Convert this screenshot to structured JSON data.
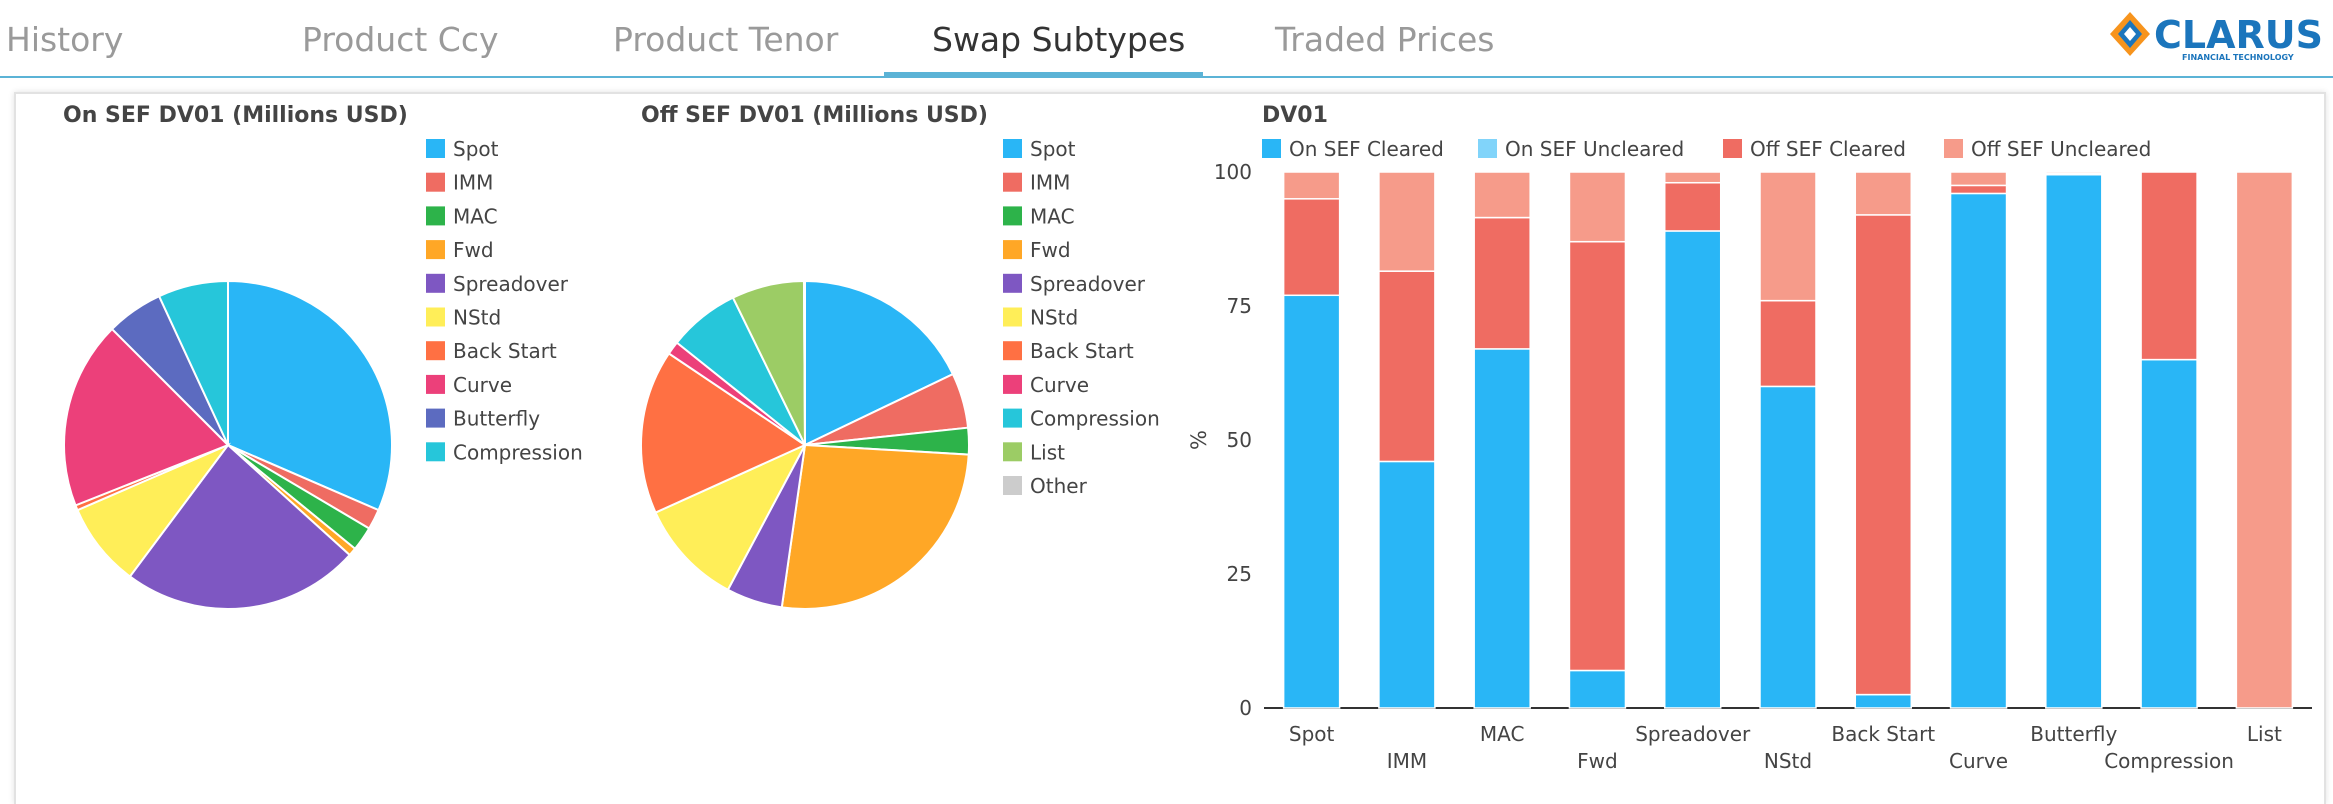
{
  "tabs": [
    {
      "label": "History",
      "active": false
    },
    {
      "label": "Product Ccy",
      "active": false
    },
    {
      "label": "Product Tenor",
      "active": false
    },
    {
      "label": "Swap Subtypes",
      "active": true
    },
    {
      "label": "Traded Prices",
      "active": false
    }
  ],
  "logo": {
    "name": "CLARUS",
    "tagline": "FINANCIAL TECHNOLOGY",
    "icon": "clarus-diamond-logo"
  },
  "chart_data": [
    {
      "type": "pie",
      "title": "On SEF DV01 (Millions USD)",
      "legend_position": "right",
      "labels": [
        "Spot",
        "IMM",
        "MAC",
        "Fwd",
        "Spreadover",
        "NStd",
        "Back Start",
        "Curve",
        "Butterfly",
        "Compression"
      ],
      "values": [
        31.5,
        2.0,
        2.4,
        0.8,
        23.5,
        8.3,
        0.5,
        18.5,
        5.6,
        6.9
      ],
      "colors": [
        "#29b6f6",
        "#ef6c62",
        "#2db34a",
        "#ffa726",
        "#7e57c2",
        "#ffee58",
        "#ff7043",
        "#ec407a",
        "#5c6bc0",
        "#26c6da"
      ]
    },
    {
      "type": "pie",
      "title": "Off SEF DV01 (Millions USD)",
      "legend_position": "right",
      "labels": [
        "Spot",
        "IMM",
        "MAC",
        "Fwd",
        "Spreadover",
        "NStd",
        "Back Start",
        "Curve",
        "Compression",
        "List",
        "Other"
      ],
      "values": [
        17.8,
        5.4,
        2.6,
        26.2,
        5.5,
        10.4,
        16.1,
        1.3,
        7.0,
        7.1,
        0.1
      ],
      "colors": [
        "#29b6f6",
        "#ef6c62",
        "#2db34a",
        "#ffa726",
        "#7e57c2",
        "#ffee58",
        "#ff7043",
        "#ec407a",
        "#26c6da",
        "#9ccc65",
        "#cccccc"
      ]
    },
    {
      "type": "bar",
      "stacked": true,
      "title": "DV01",
      "ylabel": "%",
      "ylim": [
        0,
        100
      ],
      "yticks": [
        0,
        25,
        50,
        75,
        100
      ],
      "grid": false,
      "legend_position": "top",
      "categories": [
        "Spot",
        "IMM",
        "MAC",
        "Fwd",
        "Spreadover",
        "NStd",
        "Back Start",
        "Curve",
        "Butterfly",
        "Compression",
        "List"
      ],
      "series": [
        {
          "name": "On SEF Cleared",
          "color": "#29b6f6",
          "values": [
            77,
            46,
            67,
            7,
            89,
            60,
            2.5,
            96,
            99.5,
            65,
            0
          ]
        },
        {
          "name": "On SEF Uncleared",
          "color": "#81d4fa",
          "values": [
            0,
            0,
            0,
            0,
            0,
            0,
            0,
            0,
            0,
            0,
            0
          ]
        },
        {
          "name": "Off SEF Cleared",
          "color": "#ef6c62",
          "values": [
            18,
            35.5,
            24.5,
            80,
            9,
            16,
            89.5,
            1.5,
            0.2,
            35,
            0
          ]
        },
        {
          "name": "Off SEF Uncleared",
          "color": "#f69b8a",
          "values": [
            5,
            18.5,
            8.5,
            13,
            2,
            24,
            8,
            2.5,
            0.3,
            0,
            100
          ]
        }
      ]
    }
  ]
}
